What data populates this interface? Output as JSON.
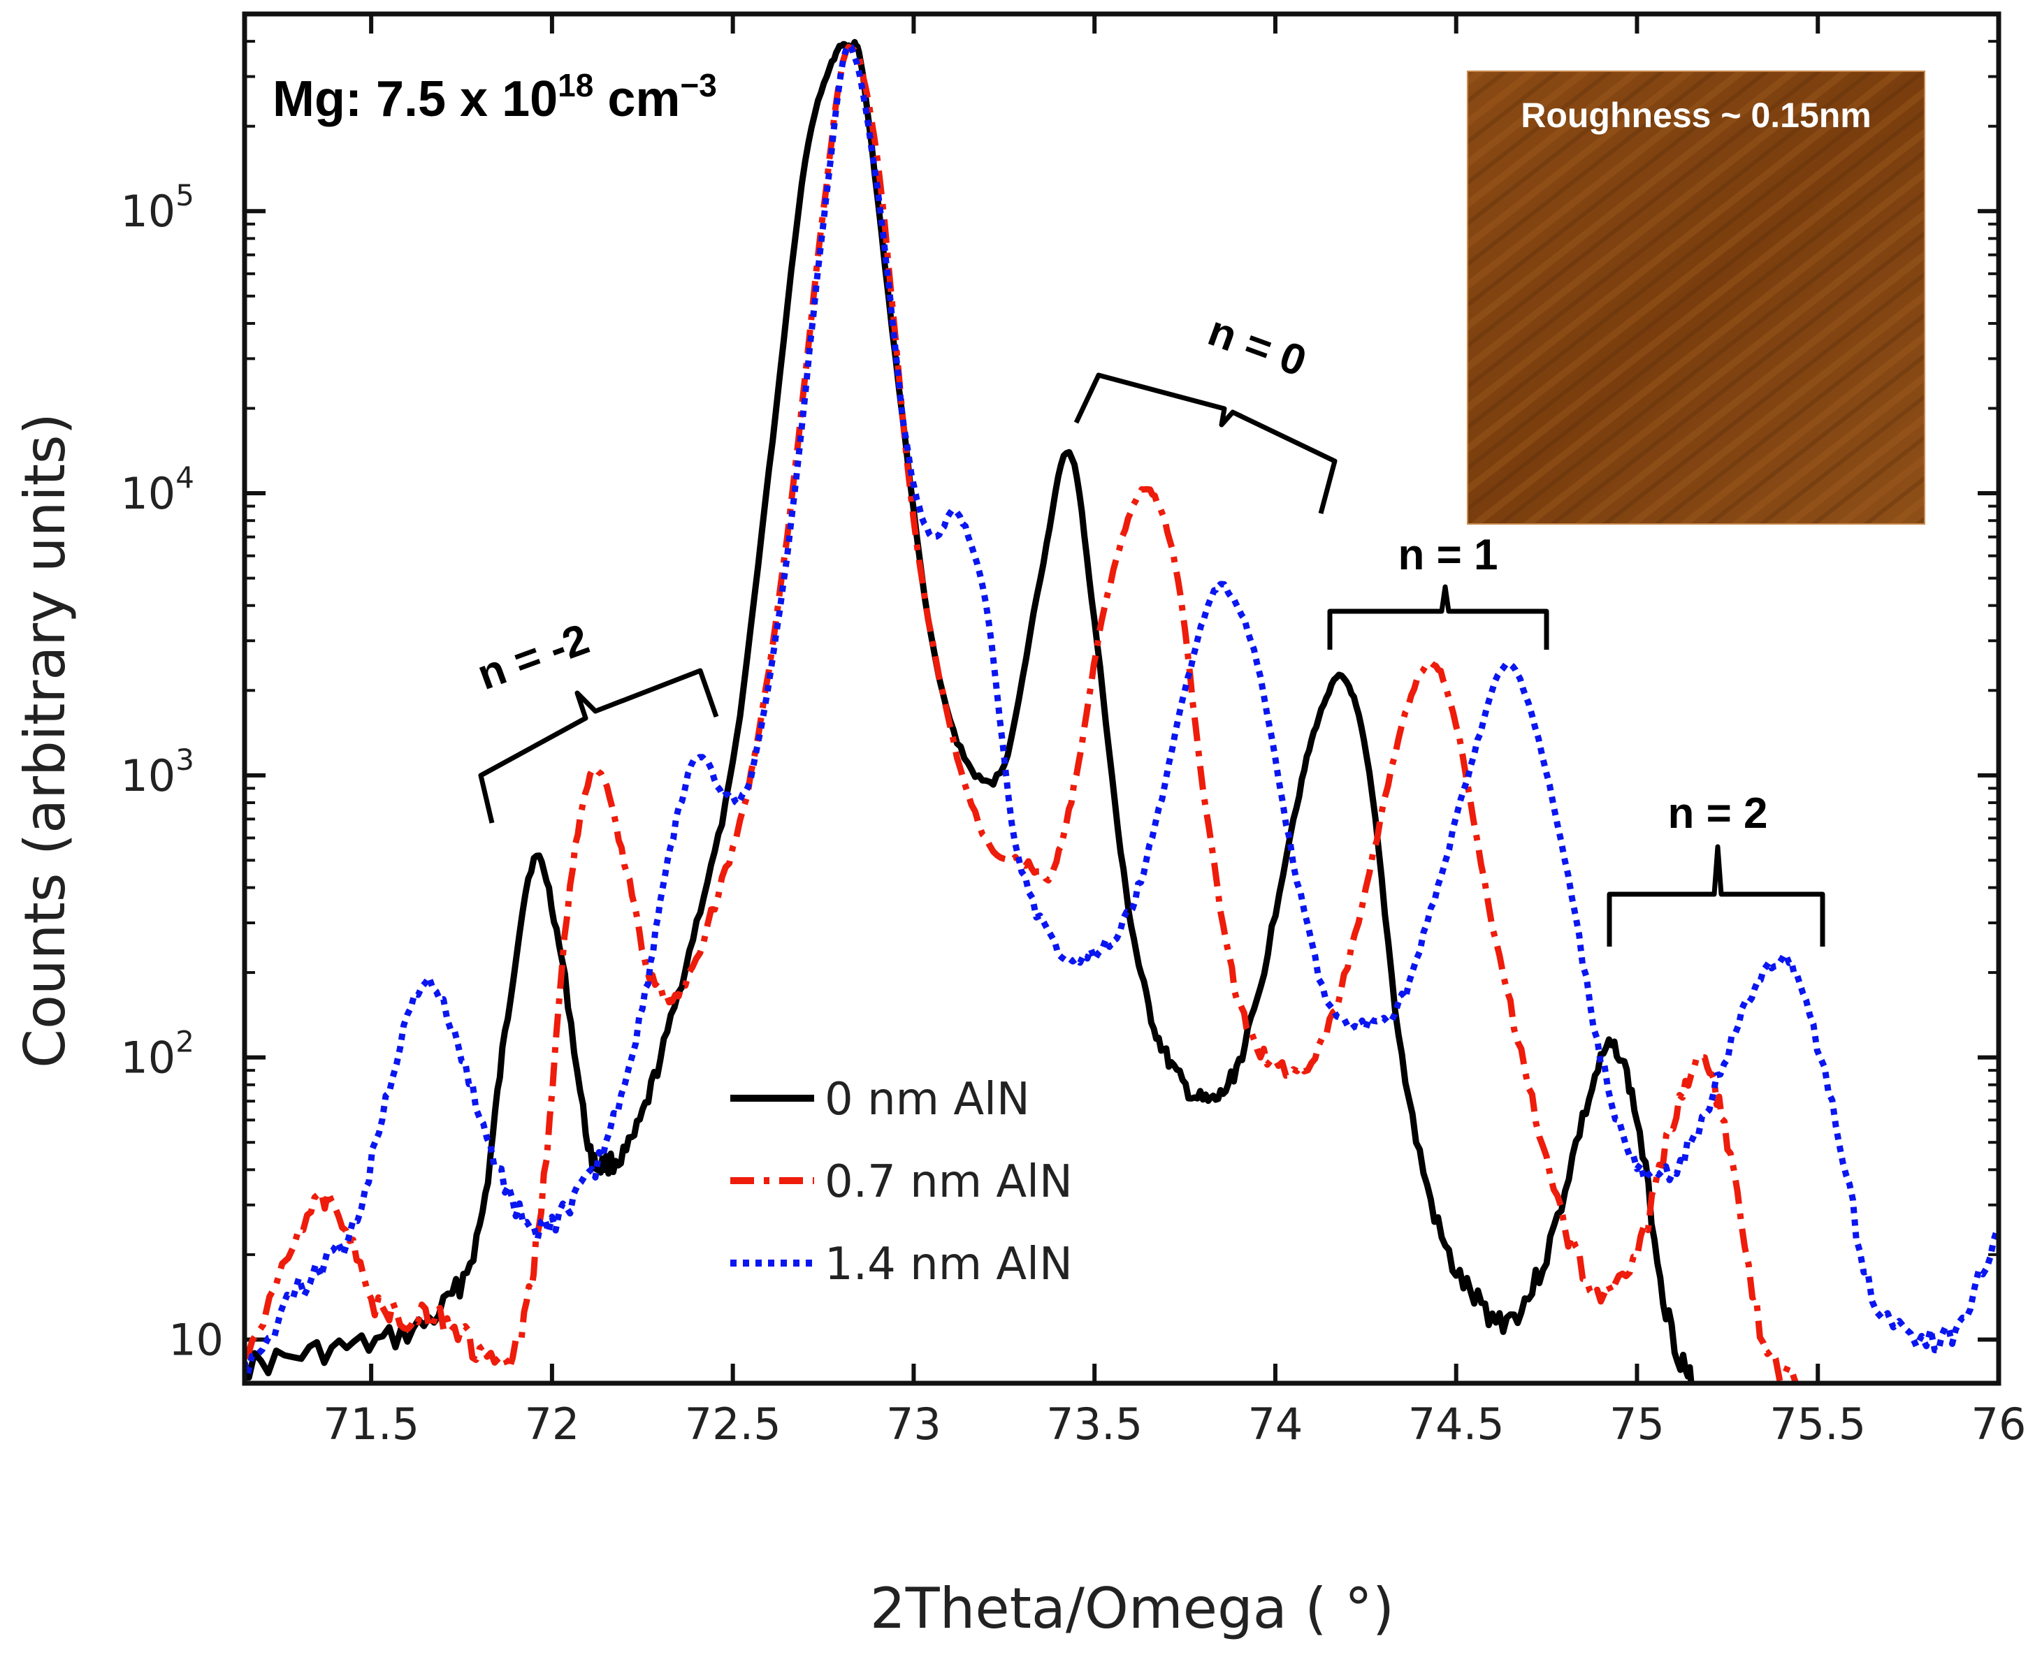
{
  "chart_data": {
    "type": "line",
    "title": "",
    "xlabel": "2Theta/Omega ( °)",
    "ylabel": "Counts (arbitrary units)",
    "xlim": [
      71.15,
      76.0
    ],
    "ylim": [
      7,
      500000
    ],
    "yscale": "log",
    "xticks": [
      71.5,
      72,
      72.5,
      73,
      73.5,
      74,
      74.5,
      75,
      75.5,
      76
    ],
    "xtick_labels": [
      "71.5",
      "72",
      "72.5",
      "73",
      "73.5",
      "74",
      "74.5",
      "75",
      "75.5",
      "76"
    ],
    "yticks": [
      10,
      100,
      1000,
      10000,
      100000
    ],
    "ytick_labels": [
      {
        "base": "10",
        "exp": ""
      },
      {
        "base": "10",
        "exp": "2"
      },
      {
        "base": "10",
        "exp": "3"
      },
      {
        "base": "10",
        "exp": "4"
      },
      {
        "base": "10",
        "exp": "5"
      }
    ],
    "series": [
      {
        "name": "0 nm AlN",
        "color": "#000000",
        "style": "solid",
        "x": [
          71.15,
          71.35,
          71.55,
          71.7,
          71.8,
          71.87,
          71.95,
          72.02,
          72.1,
          72.15,
          72.22,
          72.3,
          72.4,
          72.5,
          72.6,
          72.7,
          72.78,
          72.82,
          72.86,
          72.95,
          73.05,
          73.15,
          73.25,
          73.35,
          73.43,
          73.5,
          73.58,
          73.65,
          73.72,
          73.8,
          73.87,
          73.95,
          74.05,
          74.12,
          74.19,
          74.26,
          74.35,
          74.45,
          74.55,
          74.65,
          74.75,
          74.85,
          74.93,
          75.0,
          75.08,
          75.15
        ],
        "y": [
          8,
          9,
          10,
          13,
          25,
          120,
          500,
          250,
          50,
          42,
          50,
          100,
          300,
          1100,
          12000,
          150000,
          350000,
          380000,
          300000,
          30000,
          3000,
          1100,
          1100,
          5000,
          14000,
          3500,
          450,
          150,
          90,
          70,
          80,
          160,
          700,
          1600,
          2200,
          1000,
          100,
          25,
          14,
          12,
          20,
          60,
          110,
          60,
          13,
          7
        ]
      },
      {
        "name": "0.7 nm AlN",
        "color": "#ee1c0b",
        "style": "dashdot",
        "x": [
          71.15,
          71.3,
          71.4,
          71.5,
          71.6,
          71.7,
          71.8,
          71.9,
          71.97,
          72.05,
          72.12,
          72.2,
          72.27,
          72.35,
          72.45,
          72.55,
          72.65,
          72.75,
          72.82,
          72.9,
          73.0,
          73.1,
          73.2,
          73.3,
          73.38,
          73.45,
          73.52,
          73.6,
          73.66,
          73.73,
          73.8,
          73.88,
          73.95,
          74.05,
          74.15,
          74.25,
          74.35,
          74.43,
          74.5,
          74.6,
          74.7,
          74.8,
          74.9,
          75.0,
          75.1,
          75.18,
          75.25,
          75.35,
          75.45
        ],
        "y": [
          8,
          25,
          30,
          14,
          12,
          12,
          9,
          9,
          30,
          400,
          1050,
          500,
          200,
          170,
          350,
          1000,
          7000,
          100000,
          380000,
          150000,
          8000,
          1500,
          600,
          500,
          450,
          1000,
          3500,
          8500,
          10000,
          5000,
          900,
          200,
          110,
          90,
          130,
          400,
          1500,
          2500,
          1500,
          300,
          80,
          25,
          15,
          20,
          60,
          95,
          50,
          10,
          7
        ]
      },
      {
        "name": "1.4 nm AlN",
        "color": "#0a16f0",
        "style": "dotted",
        "x": [
          71.15,
          71.3,
          71.45,
          71.55,
          71.65,
          71.75,
          71.85,
          71.95,
          72.05,
          72.15,
          72.25,
          72.32,
          72.4,
          72.48,
          72.55,
          72.65,
          72.75,
          72.82,
          72.9,
          72.98,
          73.05,
          73.12,
          73.2,
          73.28,
          73.38,
          73.48,
          73.58,
          73.66,
          73.75,
          73.82,
          73.87,
          73.95,
          74.05,
          74.15,
          74.25,
          74.35,
          74.45,
          74.55,
          74.63,
          74.7,
          74.8,
          74.9,
          75.0,
          75.1,
          75.2,
          75.3,
          75.38,
          75.45,
          75.55,
          75.65,
          75.8,
          75.9,
          76.0
        ],
        "y": [
          8,
          15,
          25,
          80,
          185,
          100,
          40,
          25,
          30,
          50,
          150,
          500,
          1150,
          850,
          1000,
          6000,
          90000,
          380000,
          120000,
          15000,
          7000,
          8500,
          4000,
          600,
          260,
          230,
          300,
          600,
          2000,
          4200,
          4500,
          2500,
          500,
          150,
          130,
          160,
          400,
          1200,
          2400,
          1800,
          500,
          100,
          40,
          40,
          70,
          150,
          220,
          180,
          60,
          15,
          10,
          12,
          25
        ]
      }
    ],
    "legend": {
      "position": "center-bottom",
      "entries": [
        "0 nm AlN",
        "0.7 nm AlN",
        "1.4 nm AlN"
      ]
    },
    "annotations": {
      "mg_prefix": "Mg: 7.5 x 10",
      "mg_exp": "18",
      "mg_unit": " cm",
      "mg_unit_exp": "−3",
      "roughness": "Roughness ~ 0.15nm",
      "braces": [
        "n = -2",
        "n = 0",
        "n = 1",
        "n = 2"
      ]
    }
  }
}
